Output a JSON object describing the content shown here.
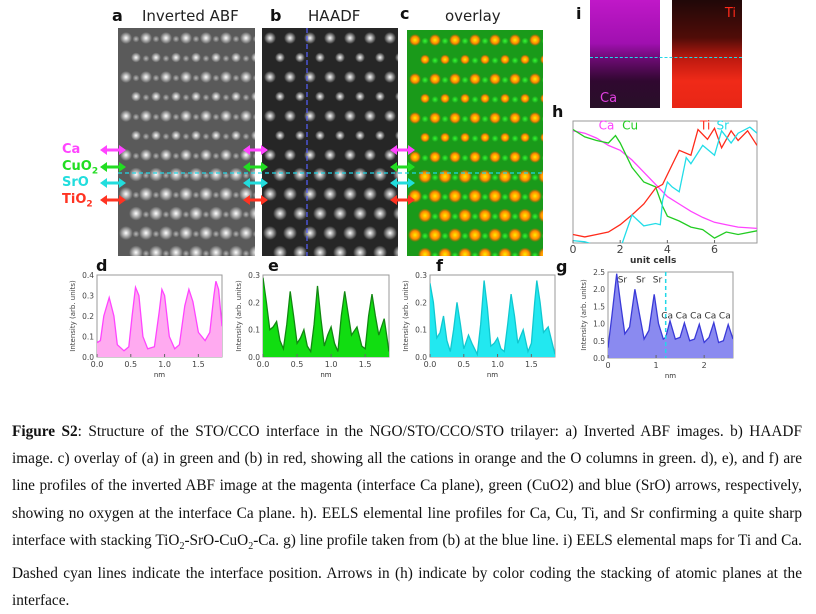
{
  "panels": {
    "a": {
      "letter": "a",
      "title": "Inverted ABF"
    },
    "b": {
      "letter": "b",
      "title": "HAADF"
    },
    "c": {
      "letter": "c",
      "title": "overlay"
    },
    "d": {
      "letter": "d"
    },
    "e": {
      "letter": "e"
    },
    "f": {
      "letter": "f"
    },
    "g": {
      "letter": "g"
    },
    "h": {
      "letter": "h"
    },
    "i": {
      "letter": "i",
      "maps": [
        {
          "label": "Ca",
          "color": "#e040e0"
        },
        {
          "label": "Ti",
          "color": "#ff2a1a"
        }
      ]
    }
  },
  "layer_labels": [
    {
      "text": "Ca",
      "color": "#ff44ff"
    },
    {
      "text": "CuO",
      "sub": "2",
      "color": "#22dd22"
    },
    {
      "text": "SrO",
      "color": "#22dddd"
    },
    {
      "text": "TiO",
      "sub": "2",
      "color": "#ff3322"
    }
  ],
  "colors": {
    "interface_line": "#22d8e8",
    "haadf_line": "#5560ff"
  },
  "chart_data": [
    {
      "id": "d",
      "type": "area",
      "color": "#ff44ff",
      "fill": "#ffaaf0",
      "xlabel": "nm",
      "ylabel": "Intensity (arb. units)",
      "xlim": [
        0,
        1.85
      ],
      "ylim": [
        0,
        0.4
      ],
      "xticks": [
        "0.0",
        "0.5",
        "1.0",
        "1.5"
      ],
      "yticks": [
        "0.0",
        "0.1",
        "0.2",
        "0.3",
        "0.4"
      ],
      "points": [
        [
          0,
          0.07
        ],
        [
          0.05,
          0.08
        ],
        [
          0.1,
          0.2
        ],
        [
          0.18,
          0.29
        ],
        [
          0.25,
          0.2
        ],
        [
          0.3,
          0.06
        ],
        [
          0.4,
          0.03
        ],
        [
          0.47,
          0.05
        ],
        [
          0.52,
          0.2
        ],
        [
          0.57,
          0.34
        ],
        [
          0.62,
          0.3
        ],
        [
          0.68,
          0.1
        ],
        [
          0.75,
          0.04
        ],
        [
          0.85,
          0.05
        ],
        [
          0.92,
          0.22
        ],
        [
          0.96,
          0.33
        ],
        [
          1.0,
          0.3
        ],
        [
          1.07,
          0.1
        ],
        [
          1.15,
          0.04
        ],
        [
          1.22,
          0.06
        ],
        [
          1.3,
          0.25
        ],
        [
          1.36,
          0.33
        ],
        [
          1.42,
          0.27
        ],
        [
          1.5,
          0.12
        ],
        [
          1.6,
          0.08
        ],
        [
          1.67,
          0.12
        ],
        [
          1.73,
          0.3
        ],
        [
          1.76,
          0.37
        ],
        [
          1.8,
          0.33
        ],
        [
          1.85,
          0.15
        ]
      ]
    },
    {
      "id": "e",
      "type": "area",
      "color": "#118811",
      "fill": "#11dd11",
      "xlabel": "nm",
      "ylabel": "Intensity (arb. units)",
      "xlim": [
        0,
        1.85
      ],
      "ylim": [
        0,
        0.3
      ],
      "xticks": [
        "0.0",
        "0.5",
        "1.0",
        "1.5"
      ],
      "yticks": [
        "0.0",
        "0.1",
        "0.2",
        "0.3"
      ],
      "points": [
        [
          0,
          0.29
        ],
        [
          0.05,
          0.2
        ],
        [
          0.1,
          0.1
        ],
        [
          0.15,
          0.11
        ],
        [
          0.2,
          0.13
        ],
        [
          0.25,
          0.06
        ],
        [
          0.3,
          0.03
        ],
        [
          0.35,
          0.12
        ],
        [
          0.4,
          0.24
        ],
        [
          0.45,
          0.15
        ],
        [
          0.5,
          0.05
        ],
        [
          0.55,
          0.07
        ],
        [
          0.6,
          0.1
        ],
        [
          0.65,
          0.04
        ],
        [
          0.7,
          0.02
        ],
        [
          0.75,
          0.12
        ],
        [
          0.8,
          0.26
        ],
        [
          0.85,
          0.14
        ],
        [
          0.9,
          0.04
        ],
        [
          0.95,
          0.08
        ],
        [
          1.0,
          0.11
        ],
        [
          1.05,
          0.05
        ],
        [
          1.1,
          0.02
        ],
        [
          1.15,
          0.15
        ],
        [
          1.2,
          0.24
        ],
        [
          1.25,
          0.16
        ],
        [
          1.3,
          0.08
        ],
        [
          1.38,
          0.11
        ],
        [
          1.45,
          0.04
        ],
        [
          1.5,
          0.03
        ],
        [
          1.55,
          0.15
        ],
        [
          1.6,
          0.23
        ],
        [
          1.65,
          0.15
        ],
        [
          1.7,
          0.08
        ],
        [
          1.78,
          0.14
        ],
        [
          1.85,
          0.02
        ]
      ]
    },
    {
      "id": "f",
      "type": "area",
      "color": "#10c8d0",
      "fill": "#22e8f0",
      "xlabel": "nm",
      "ylabel": "Intensity (arb. units)",
      "xlim": [
        0,
        1.85
      ],
      "ylim": [
        0,
        0.3
      ],
      "xticks": [
        "0.0",
        "0.5",
        "1.0",
        "1.5"
      ],
      "yticks": [
        "0.0",
        "0.1",
        "0.2",
        "0.3"
      ],
      "points": [
        [
          0,
          0.27
        ],
        [
          0.05,
          0.2
        ],
        [
          0.1,
          0.07
        ],
        [
          0.15,
          0.09
        ],
        [
          0.2,
          0.15
        ],
        [
          0.25,
          0.06
        ],
        [
          0.3,
          0.02
        ],
        [
          0.35,
          0.1
        ],
        [
          0.4,
          0.2
        ],
        [
          0.45,
          0.12
        ],
        [
          0.5,
          0.03
        ],
        [
          0.57,
          0.08
        ],
        [
          0.62,
          0.05
        ],
        [
          0.7,
          0.01
        ],
        [
          0.75,
          0.12
        ],
        [
          0.8,
          0.28
        ],
        [
          0.85,
          0.18
        ],
        [
          0.9,
          0.04
        ],
        [
          0.95,
          0.05
        ],
        [
          1.0,
          0.07
        ],
        [
          1.05,
          0.03
        ],
        [
          1.1,
          0.02
        ],
        [
          1.15,
          0.12
        ],
        [
          1.2,
          0.23
        ],
        [
          1.25,
          0.15
        ],
        [
          1.3,
          0.05
        ],
        [
          1.38,
          0.1
        ],
        [
          1.45,
          0.02
        ],
        [
          1.5,
          0.05
        ],
        [
          1.55,
          0.2
        ],
        [
          1.58,
          0.28
        ],
        [
          1.63,
          0.2
        ],
        [
          1.68,
          0.09
        ],
        [
          1.75,
          0.11
        ],
        [
          1.85,
          0.01
        ]
      ]
    },
    {
      "id": "g",
      "type": "area",
      "color": "#3a3ad8",
      "fill": "#8a8af0",
      "xlabel": "nm",
      "ylabel": "Intensity (arb. units)",
      "xlim": [
        0,
        2.6
      ],
      "ylim": [
        0,
        2.5
      ],
      "xticks": [
        "0",
        "1",
        "2"
      ],
      "yticks": [
        "0.0",
        "0.5",
        "1.0",
        "1.5",
        "2.0",
        "2.5"
      ],
      "interface_x": 1.2,
      "points": [
        [
          0,
          0.3
        ],
        [
          0.08,
          1.2
        ],
        [
          0.18,
          2.45
        ],
        [
          0.26,
          1.6
        ],
        [
          0.35,
          0.7
        ],
        [
          0.45,
          0.9
        ],
        [
          0.56,
          2.0
        ],
        [
          0.65,
          1.3
        ],
        [
          0.75,
          0.55
        ],
        [
          0.85,
          0.8
        ],
        [
          0.96,
          1.85
        ],
        [
          1.05,
          1.0
        ],
        [
          1.15,
          0.55
        ],
        [
          1.2,
          0.6
        ],
        [
          1.29,
          1.08
        ],
        [
          1.4,
          0.55
        ],
        [
          1.5,
          0.6
        ],
        [
          1.59,
          1.02
        ],
        [
          1.7,
          0.5
        ],
        [
          1.8,
          0.55
        ],
        [
          1.9,
          0.98
        ],
        [
          2.0,
          0.45
        ],
        [
          2.1,
          0.6
        ],
        [
          2.2,
          1.03
        ],
        [
          2.3,
          0.45
        ],
        [
          2.4,
          0.5
        ],
        [
          2.5,
          0.97
        ],
        [
          2.6,
          0.55
        ]
      ],
      "annotations": [
        {
          "text": "Sr",
          "x": 0.3,
          "y": 2.2
        },
        {
          "text": "Sr",
          "x": 0.68,
          "y": 2.2
        },
        {
          "text": "Sr",
          "x": 1.03,
          "y": 2.2
        },
        {
          "text": "Ca",
          "x": 1.23,
          "y": 1.15
        },
        {
          "text": "Ca",
          "x": 1.53,
          "y": 1.15
        },
        {
          "text": "Ca",
          "x": 1.83,
          "y": 1.15
        },
        {
          "text": "Ca",
          "x": 2.13,
          "y": 1.15
        },
        {
          "text": "Ca",
          "x": 2.43,
          "y": 1.15
        }
      ]
    },
    {
      "id": "h",
      "type": "line",
      "xlabel": "unit cells",
      "ylabel": "Intensity  (arb. units)",
      "xlim": [
        0,
        7.8
      ],
      "ylim": [
        0,
        1
      ],
      "xticks": [
        "0",
        "2",
        "4",
        "6"
      ],
      "interface_x": 3.75,
      "series": [
        {
          "name": "Ca",
          "color": "#ff44ff",
          "points": [
            [
              0,
              0.92
            ],
            [
              0.5,
              0.9
            ],
            [
              1,
              0.86
            ],
            [
              1.5,
              0.8
            ],
            [
              2,
              0.76
            ],
            [
              2.5,
              0.68
            ],
            [
              3,
              0.58
            ],
            [
              3.5,
              0.48
            ],
            [
              4,
              0.38
            ],
            [
              4.5,
              0.32
            ],
            [
              5,
              0.26
            ],
            [
              5.5,
              0.21
            ],
            [
              6,
              0.17
            ],
            [
              6.5,
              0.15
            ],
            [
              7,
              0.13
            ],
            [
              7.8,
              0.12
            ]
          ]
        },
        {
          "name": "Cu",
          "color": "#22cc22",
          "points": [
            [
              0,
              0.93
            ],
            [
              0.5,
              0.87
            ],
            [
              1,
              0.84
            ],
            [
              1.5,
              0.82
            ],
            [
              1.8,
              0.88
            ],
            [
              2,
              0.82
            ],
            [
              2.5,
              0.62
            ],
            [
              3,
              0.5
            ],
            [
              3.5,
              0.46
            ],
            [
              3.8,
              0.3
            ],
            [
              4,
              0.22
            ],
            [
              4.5,
              0.18
            ],
            [
              5,
              0.13
            ],
            [
              5.5,
              0.11
            ],
            [
              6,
              0.04
            ],
            [
              6.5,
              0.09
            ],
            [
              7,
              0.07
            ],
            [
              7.8,
              0.1
            ]
          ]
        },
        {
          "name": "Ti",
          "color": "#ff2a1a",
          "points": [
            [
              0,
              0.07
            ],
            [
              0.5,
              0.05
            ],
            [
              1,
              0.07
            ],
            [
              1.5,
              0.09
            ],
            [
              2,
              0.15
            ],
            [
              2.5,
              0.23
            ],
            [
              3,
              0.32
            ],
            [
              3.5,
              0.45
            ],
            [
              3.8,
              0.48
            ],
            [
              4.2,
              0.64
            ],
            [
              4.5,
              0.76
            ],
            [
              5,
              0.72
            ],
            [
              5.3,
              0.93
            ],
            [
              5.7,
              0.85
            ],
            [
              6,
              0.94
            ],
            [
              6.3,
              0.78
            ],
            [
              6.7,
              0.92
            ],
            [
              7,
              0.84
            ],
            [
              7.4,
              0.92
            ],
            [
              7.8,
              0.8
            ]
          ]
        },
        {
          "name": "Sr",
          "color": "#22dde8",
          "points": [
            [
              0,
              0.02
            ],
            [
              0.5,
              0.01
            ],
            [
              1,
              -0.02
            ],
            [
              1.5,
              -0.02
            ],
            [
              2,
              -0.05
            ],
            [
              2.5,
              0.23
            ],
            [
              3,
              0.14
            ],
            [
              3.5,
              0.16
            ],
            [
              3.7,
              0.15
            ],
            [
              3.8,
              0.35
            ],
            [
              4,
              0.5
            ],
            [
              4.2,
              0.46
            ],
            [
              4.5,
              0.42
            ],
            [
              4.8,
              0.7
            ],
            [
              5,
              0.65
            ],
            [
              5.5,
              0.8
            ],
            [
              6,
              0.72
            ],
            [
              6.3,
              0.92
            ],
            [
              6.7,
              0.82
            ],
            [
              7,
              0.9
            ],
            [
              7.5,
              0.95
            ],
            [
              7.8,
              0.9
            ]
          ]
        }
      ],
      "arrows": [
        {
          "x": 2.9,
          "color": "#ff44ff"
        },
        {
          "x": 3.4,
          "color": "#22cc22"
        },
        {
          "x": 3.95,
          "color": "#22dde8"
        },
        {
          "x": 4.45,
          "color": "#ff2a1a"
        }
      ]
    }
  ],
  "caption": [
    {
      "t": "Figure S2",
      "b": true
    },
    {
      "t": ": Structure of the STO/CCO interface in the NGO/STO/CCO/STO trilayer: a) Inverted ABF images. b) HAADF image. c) overlay of (a) in green and (b) in red, showing all the cations in orange and the O columns in green. d), e), and f) are line profiles of the inverted ABF image at the magenta (interface Ca plane), green (CuO2) and blue (SrO) arrows, respectively, showing no oxygen at the interface Ca plane. h). EELS elemental line profiles for Ca, Cu, Ti, and Sr confirming a quite sharp interface with stacking TiO"
    },
    {
      "t": "2",
      "sub": true
    },
    {
      "t": "-SrO-CuO"
    },
    {
      "t": "2",
      "sub": true
    },
    {
      "t": "-Ca. g) line profile taken from (b) at the blue line. i) EELS elemental maps for Ti and Ca. Dashed cyan lines indicate the interface position. Arrows in (h) indicate by color coding the stacking of atomic planes at the interface."
    }
  ]
}
